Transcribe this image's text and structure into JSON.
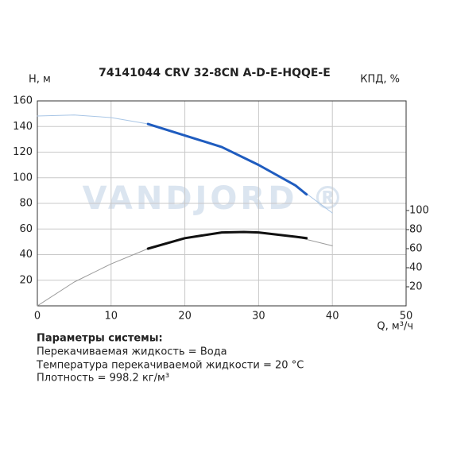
{
  "chart_data": {
    "type": "line",
    "title": "74141044 CRV 32-8CN A-D-E-HQQE-E",
    "watermark": "VANDJORD ®",
    "y_label": "H, м",
    "y2_label": "КПД, %",
    "x_label": "Q, м³/ч",
    "xlim": [
      0,
      50
    ],
    "xticks": [
      0,
      10,
      20,
      30,
      40,
      50
    ],
    "ylim": [
      0,
      160
    ],
    "yticks": [
      20,
      40,
      60,
      80,
      100,
      120,
      140,
      160
    ],
    "y2lim": [
      0,
      215
    ],
    "y2ticks": [
      20,
      40,
      60,
      80,
      100
    ],
    "grid": true,
    "series": [
      {
        "color": "#a9c6e6",
        "line_width": 1,
        "x": [
          0,
          5,
          10,
          15,
          20,
          25,
          30,
          35,
          40
        ],
        "values": [
          148.2,
          149,
          147,
          142,
          133,
          124,
          110,
          94,
          72.5
        ]
      },
      {
        "color": "#1f5cbf",
        "line_width": 3,
        "x": [
          15,
          20,
          25,
          30,
          35,
          36.5
        ],
        "values": [
          142,
          133,
          124,
          110,
          94,
          87
        ]
      },
      {
        "color": "#9a9a9a",
        "line_width": 1,
        "axis": "y2",
        "x": [
          0,
          5,
          10,
          15,
          20,
          25,
          28,
          30,
          35,
          40
        ],
        "values": [
          0,
          25,
          44,
          60,
          71,
          77,
          77.5,
          77,
          72.5,
          63
        ]
      },
      {
        "color": "#111111",
        "line_width": 3,
        "axis": "y2",
        "x": [
          15,
          20,
          25,
          28,
          30,
          35,
          36.5
        ],
        "values": [
          60,
          71,
          77,
          77.5,
          77,
          72.5,
          71
        ]
      }
    ]
  },
  "notes": {
    "heading": "Параметры системы:",
    "lines": [
      "Перекачиваемая жидкость = Вода",
      "Температура перекачиваемой жидкости = 20 °C",
      "Плотность = 998.2 кг/м³"
    ]
  }
}
